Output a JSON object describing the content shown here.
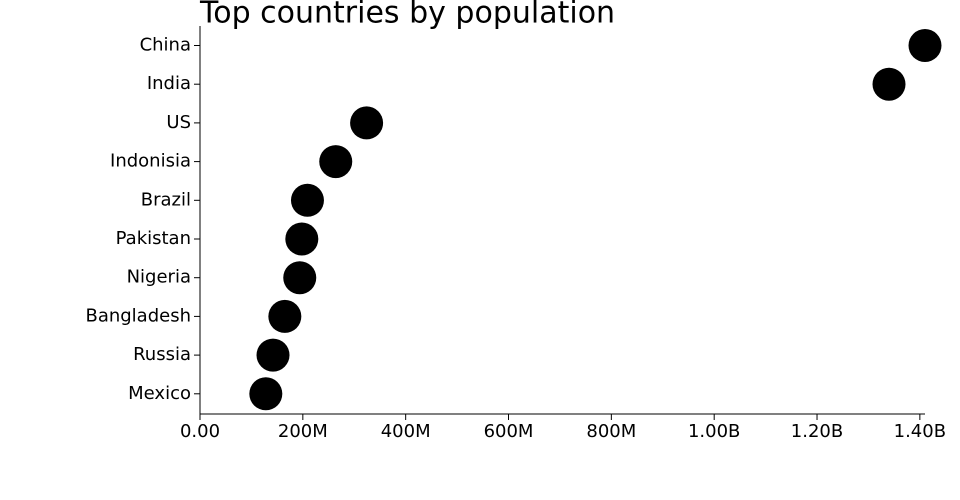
{
  "chart_data": {
    "type": "dot",
    "title": "Top countries by population",
    "categories": [
      "China",
      "India",
      "US",
      "Indonisia",
      "Brazil",
      "Pakistan",
      "Nigeria",
      "Bangladesh",
      "Russia",
      "Mexico"
    ],
    "values": [
      1410000000,
      1340000000,
      324000000,
      264000000,
      209000000,
      198000000,
      194000000,
      165000000,
      142000000,
      128000000
    ],
    "color": "#000000",
    "xlim": [
      0,
      1410000000
    ],
    "xticks": [
      {
        "value": 0,
        "label": "0.00"
      },
      {
        "value": 200000000,
        "label": "200M"
      },
      {
        "value": 400000000,
        "label": "400M"
      },
      {
        "value": 600000000,
        "label": "600M"
      },
      {
        "value": 800000000,
        "label": "800M"
      },
      {
        "value": 1000000000,
        "label": "1.00B"
      },
      {
        "value": 1200000000,
        "label": "1.20B"
      },
      {
        "value": 1400000000,
        "label": "1.40B"
      }
    ]
  }
}
